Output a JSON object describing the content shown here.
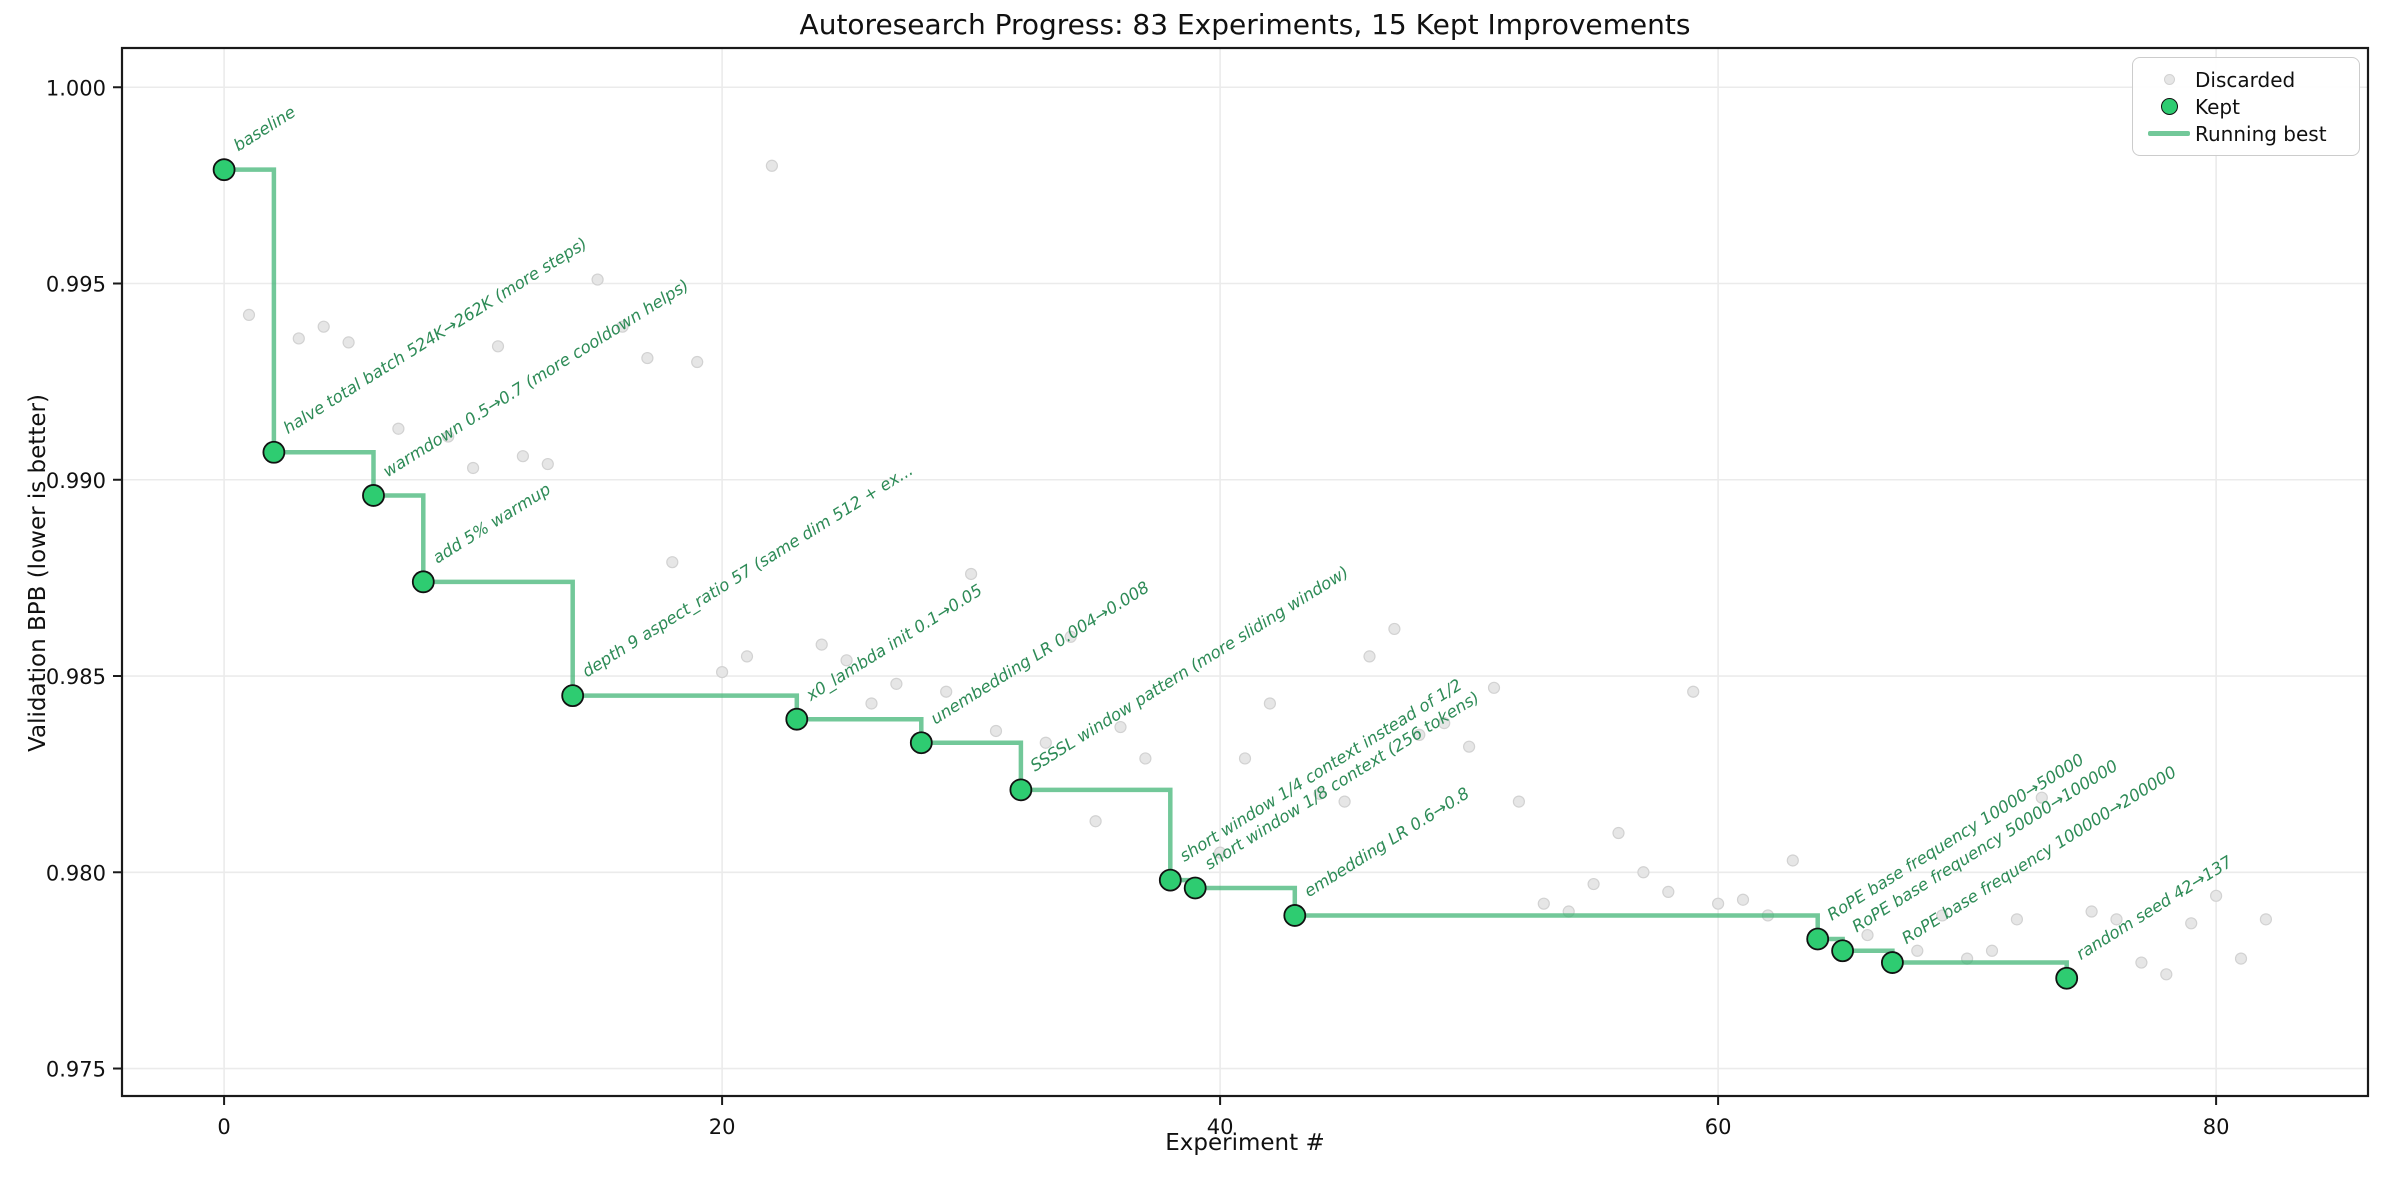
{
  "chart_data": {
    "type": "scatter",
    "title": "Autoresearch Progress: 83 Experiments, 15 Kept Improvements",
    "xlabel": "Experiment #",
    "ylabel": "Validation BPB (lower is better)",
    "xlim": [
      -4.1,
      86.1
    ],
    "ylim": [
      0.9743,
      1.001
    ],
    "xticks": [
      0,
      20,
      40,
      60,
      80
    ],
    "yticks": [
      0.975,
      0.98,
      0.985,
      0.99,
      0.995,
      1.0
    ],
    "grid": true,
    "legend": {
      "position": "upper right",
      "items": [
        {
          "label": "Discarded",
          "marker": "small-gray-dot"
        },
        {
          "label": "Kept",
          "marker": "green-dot"
        },
        {
          "label": "Running best",
          "marker": "green-line"
        }
      ]
    },
    "colors": {
      "kept_fill": "#2ecc71",
      "kept_edge": "#111111",
      "discarded_fill": "#e6e6e6",
      "discarded_edge": "#d2d2d2",
      "running_best_line": "#3CB371",
      "annotation_text": "#2e8b57",
      "grid_line": "#ebebeb",
      "spine": "#1a1a1a"
    },
    "annotation_rotation_deg": -32,
    "series": [
      {
        "name": "Kept",
        "role": "kept",
        "points": [
          {
            "x": 0,
            "y": 0.9979,
            "label": "baseline"
          },
          {
            "x": 2,
            "y": 0.9907,
            "label": "halve total batch 524K→262K (more steps)"
          },
          {
            "x": 6,
            "y": 0.9896,
            "label": "warmdown 0.5→0.7 (more cooldown helps)"
          },
          {
            "x": 8,
            "y": 0.9874,
            "label": "add 5% warmup"
          },
          {
            "x": 14,
            "y": 0.9845,
            "label": "depth 9 aspect_ratio 57 (same dim 512 + ex..."
          },
          {
            "x": 23,
            "y": 0.9839,
            "label": "x0_lambda init 0.1→0.05"
          },
          {
            "x": 28,
            "y": 0.9833,
            "label": "unembedding LR 0.004→0.008"
          },
          {
            "x": 32,
            "y": 0.9821,
            "label": "SSSSL window pattern (more sliding window)"
          },
          {
            "x": 38,
            "y": 0.9798,
            "label": "short window 1/4 context instead of 1/2"
          },
          {
            "x": 39,
            "y": 0.9796,
            "label": "short window 1/8 context (256 tokens)"
          },
          {
            "x": 43,
            "y": 0.9789,
            "label": "embedding LR 0.6→0.8"
          },
          {
            "x": 64,
            "y": 0.9783,
            "label": "RoPE base frequency 10000→50000"
          },
          {
            "x": 65,
            "y": 0.978,
            "label": "RoPE base frequency 50000→100000"
          },
          {
            "x": 67,
            "y": 0.9777,
            "label": "RoPE base frequency 100000→200000"
          },
          {
            "x": 74,
            "y": 0.9773,
            "label": "random seed 42→137"
          }
        ]
      },
      {
        "name": "Discarded",
        "role": "discarded",
        "points": [
          [
            1,
            0.9942
          ],
          [
            3,
            0.9936
          ],
          [
            4,
            0.9939
          ],
          [
            5,
            0.9935
          ],
          [
            7,
            0.9913
          ],
          [
            9,
            0.9911
          ],
          [
            10,
            0.9903
          ],
          [
            11,
            0.9934
          ],
          [
            12,
            0.9906
          ],
          [
            13,
            0.9904
          ],
          [
            15,
            0.9951
          ],
          [
            16,
            0.9939
          ],
          [
            17,
            0.9931
          ],
          [
            18,
            0.9879
          ],
          [
            19,
            0.993
          ],
          [
            20,
            0.9851
          ],
          [
            21,
            0.9855
          ],
          [
            22,
            0.998
          ],
          [
            24,
            0.9858
          ],
          [
            25,
            0.9854
          ],
          [
            26,
            0.9843
          ],
          [
            27,
            0.9848
          ],
          [
            29,
            0.9846
          ],
          [
            30,
            0.9876
          ],
          [
            31,
            0.9836
          ],
          [
            33,
            0.9833
          ],
          [
            34,
            0.986
          ],
          [
            35,
            0.9813
          ],
          [
            36,
            0.9837
          ],
          [
            37,
            0.9829
          ],
          [
            40,
            0.9805
          ],
          [
            41,
            0.9829
          ],
          [
            42,
            0.9843
          ],
          [
            44,
            0.982
          ],
          [
            45,
            0.9818
          ],
          [
            46,
            0.9855
          ],
          [
            47,
            0.9862
          ],
          [
            48,
            0.9835
          ],
          [
            49,
            0.9838
          ],
          [
            50,
            0.9832
          ],
          [
            51,
            0.9847
          ],
          [
            52,
            0.9818
          ],
          [
            53,
            0.9792
          ],
          [
            54,
            0.979
          ],
          [
            55,
            0.9797
          ],
          [
            56,
            0.981
          ],
          [
            57,
            0.98
          ],
          [
            58,
            0.9795
          ],
          [
            59,
            0.9846
          ],
          [
            60,
            0.9792
          ],
          [
            61,
            0.9793
          ],
          [
            62,
            0.9789
          ],
          [
            63,
            0.9803
          ],
          [
            66,
            0.9784
          ],
          [
            68,
            0.978
          ],
          [
            69,
            0.9789
          ],
          [
            70,
            0.9778
          ],
          [
            71,
            0.978
          ],
          [
            72,
            0.9788
          ],
          [
            73,
            0.9819
          ],
          [
            75,
            0.979
          ],
          [
            76,
            0.9788
          ],
          [
            77,
            0.9777
          ],
          [
            78,
            0.9774
          ],
          [
            79,
            0.9787
          ],
          [
            80,
            0.9794
          ],
          [
            81,
            0.9778
          ],
          [
            82,
            0.9788
          ]
        ]
      },
      {
        "name": "Running best",
        "role": "running-best",
        "style": "steps-post",
        "derived_from": "Kept"
      }
    ]
  }
}
